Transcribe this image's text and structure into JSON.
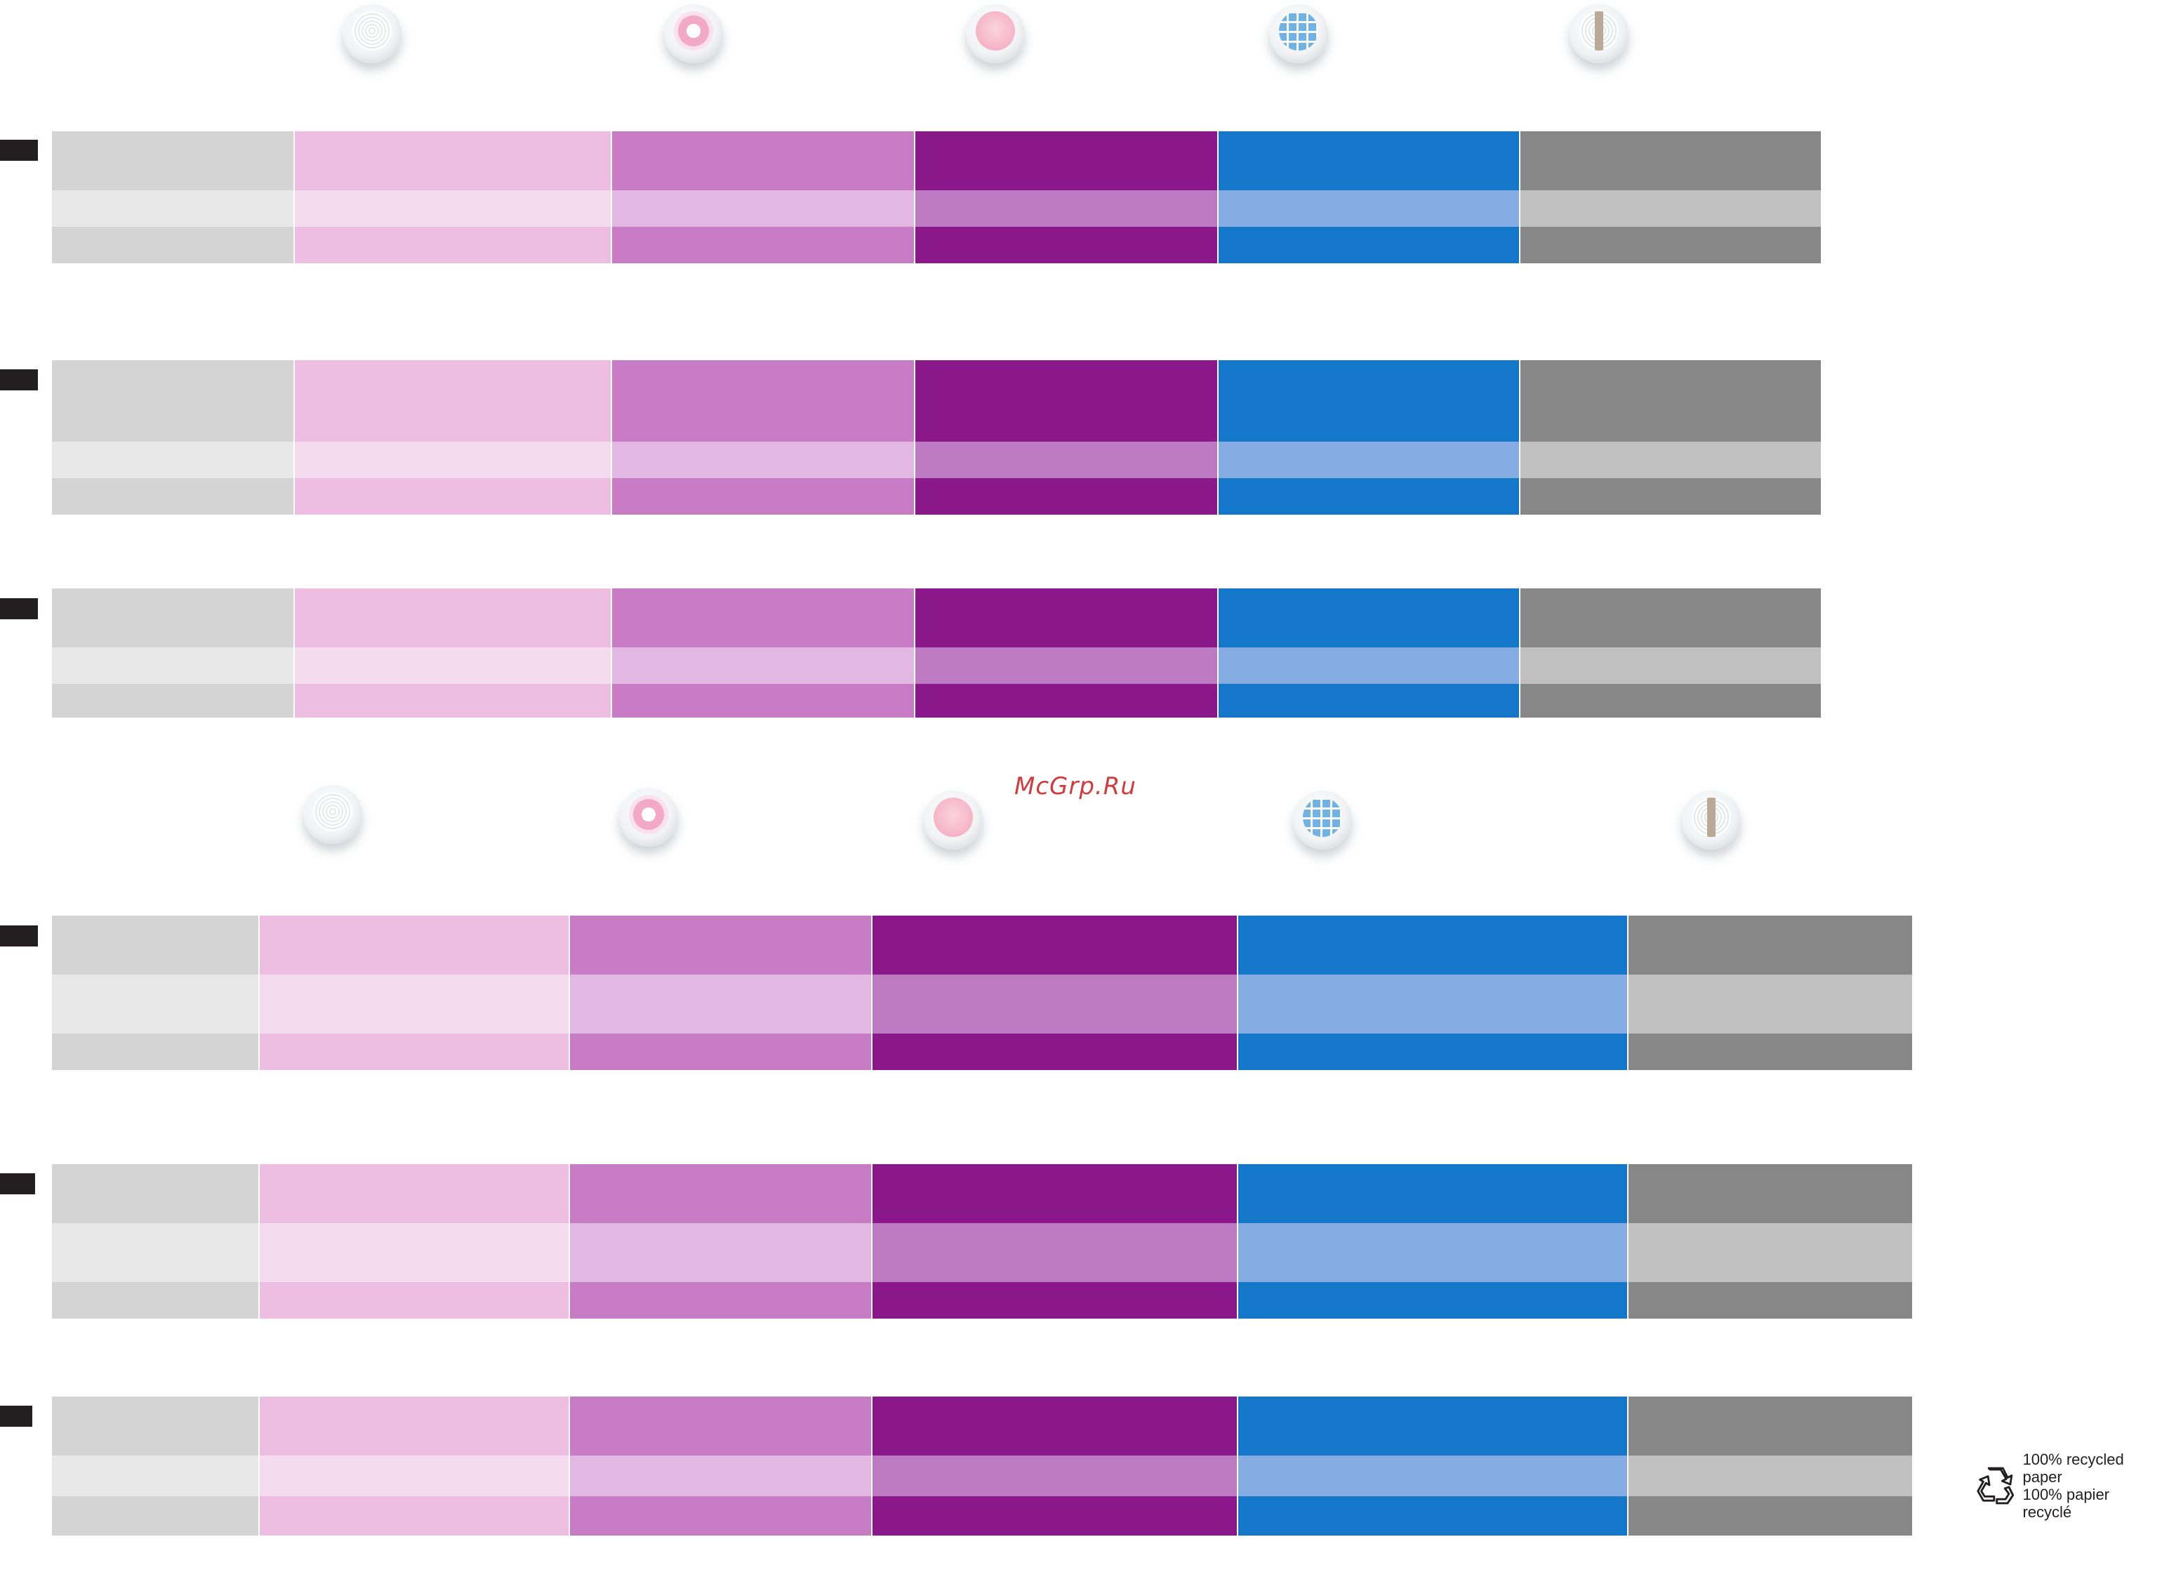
{
  "colors": {
    "grey_dark": "#d4d4d4",
    "grey_light": "#e8e8e8",
    "pink_dark": "#edbde2",
    "pink_light": "#f5dbee",
    "orchid_dark": "#c87cc5",
    "orchid_light": "#e2b8e2",
    "purple_dark": "#8b188b",
    "purple_light": "#bc7ac2",
    "blue_dark": "#1477c9",
    "blue_light": "#85ade3",
    "slate_dark": "#878787",
    "slate_light": "#c0c0c0",
    "marker": "#231f20"
  },
  "watermark": "McGrp.Ru",
  "recycle": {
    "icon": "recycle-icon",
    "line1": "100% recycled paper",
    "line2": "100% papier recyclé"
  }
}
